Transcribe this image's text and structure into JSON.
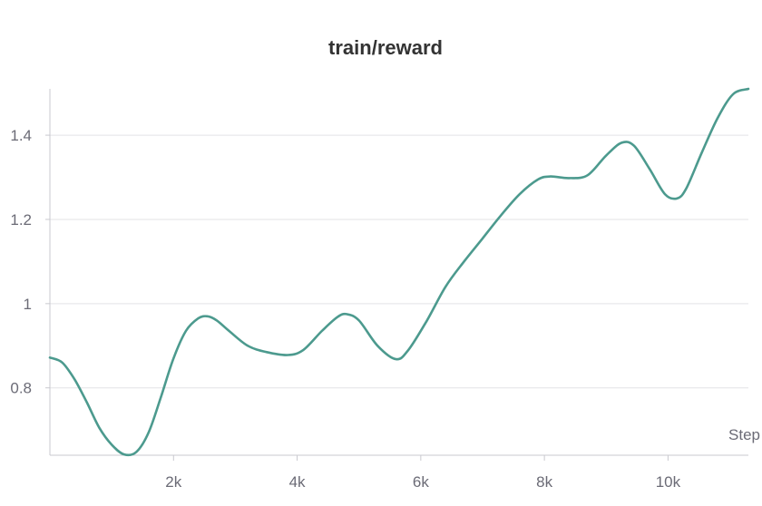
{
  "chart_data": {
    "type": "line",
    "title": "train/reward",
    "xlabel": "Step",
    "ylabel": "",
    "xlim": [
      0,
      11300
    ],
    "ylim": [
      0.64,
      1.51
    ],
    "x_ticks": [
      2000,
      4000,
      6000,
      8000,
      10000
    ],
    "x_tick_labels": [
      "2k",
      "4k",
      "6k",
      "8k",
      "10k"
    ],
    "y_ticks": [
      0.8,
      1.0,
      1.2,
      1.4
    ],
    "y_tick_labels": [
      "0.8",
      "1",
      "1.2",
      "1.4"
    ],
    "grid": "horizontal",
    "colors": {
      "series": "#4c9a8e",
      "grid": "#e3e3e6",
      "axis": "#c9c9cf",
      "text": "#6b6b76"
    },
    "series": [
      {
        "x": [
          0,
          200,
          400,
          600,
          800,
          1000,
          1200,
          1400,
          1600,
          1800,
          2000,
          2200,
          2400,
          2550,
          2700,
          2900,
          3200,
          3500,
          3850,
          4100,
          4400,
          4650,
          4800,
          5000,
          5300,
          5600,
          5800,
          6100,
          6400,
          6700,
          7000,
          7300,
          7600,
          7900,
          8100,
          8400,
          8700,
          9000,
          9250,
          9450,
          9700,
          9950,
          10150,
          10300,
          10550,
          10800,
          11050,
          11300
        ],
        "y": [
          0.872,
          0.86,
          0.82,
          0.765,
          0.705,
          0.665,
          0.642,
          0.648,
          0.695,
          0.78,
          0.87,
          0.935,
          0.965,
          0.97,
          0.96,
          0.935,
          0.9,
          0.885,
          0.878,
          0.89,
          0.935,
          0.968,
          0.975,
          0.96,
          0.9,
          0.868,
          0.89,
          0.96,
          1.04,
          1.1,
          1.155,
          1.21,
          1.26,
          1.295,
          1.302,
          1.298,
          1.305,
          1.352,
          1.382,
          1.375,
          1.32,
          1.26,
          1.25,
          1.275,
          1.36,
          1.44,
          1.497,
          1.51
        ]
      }
    ]
  }
}
